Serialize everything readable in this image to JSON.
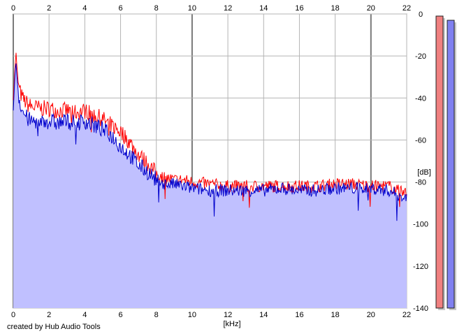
{
  "credit": "created by Hub Audio Tools",
  "chart_data": {
    "type": "area",
    "title": "",
    "xlabel": "[kHz]",
    "ylabel": "[dB]",
    "xlim": [
      0,
      22
    ],
    "ylim": [
      -140,
      0
    ],
    "x_ticks": [
      0,
      2,
      4,
      6,
      8,
      10,
      12,
      14,
      16,
      18,
      20,
      22
    ],
    "y_ticks": [
      0,
      -20,
      -40,
      -60,
      -80,
      -100,
      -120,
      -140
    ],
    "grid": true,
    "legend": "none",
    "series": [
      {
        "color": "#ff0000",
        "x": [
          0,
          0.1,
          0.15,
          0.2,
          0.3,
          0.5,
          0.8,
          1.0,
          1.5,
          2.0,
          2.5,
          3.0,
          3.5,
          4.0,
          4.5,
          5.0,
          5.5,
          6.0,
          6.5,
          7.0,
          7.5,
          8.0,
          8.5,
          9.0,
          9.5,
          10.0,
          11,
          12,
          13,
          14,
          15,
          16,
          17,
          18,
          19,
          20,
          21,
          22
        ],
        "values": [
          -40,
          -25,
          -18,
          -25,
          -35,
          -40,
          -43,
          -44,
          -45,
          -45,
          -46,
          -46,
          -47,
          -46,
          -48,
          -50,
          -53,
          -56,
          -61,
          -67,
          -71,
          -76,
          -78,
          -79,
          -79,
          -80,
          -81,
          -82,
          -82,
          -82,
          -82,
          -82,
          -82,
          -81,
          -81,
          -82,
          -82,
          -86
        ]
      },
      {
        "color": "#0000cc",
        "x": [
          0,
          0.1,
          0.15,
          0.2,
          0.3,
          0.5,
          0.8,
          1.0,
          1.5,
          2.0,
          2.5,
          3.0,
          3.5,
          4.0,
          4.5,
          5.0,
          5.5,
          6.0,
          6.5,
          7.0,
          7.5,
          8.0,
          8.5,
          9.0,
          9.5,
          10.0,
          11,
          12,
          13,
          14,
          15,
          16,
          17,
          18,
          19,
          20,
          21,
          22
        ],
        "values": [
          -45,
          -29,
          -22,
          -29,
          -39,
          -46,
          -50,
          -51,
          -51,
          -51,
          -52,
          -51,
          -52,
          -51,
          -53,
          -55,
          -58,
          -63,
          -67,
          -72,
          -75,
          -79,
          -81,
          -81,
          -82,
          -83,
          -84,
          -84,
          -84,
          -84,
          -83,
          -84,
          -84,
          -83,
          -83,
          -83,
          -84,
          -88
        ]
      }
    ],
    "levels": [
      {
        "color": "#f08080",
        "value": -1
      },
      {
        "color": "#8080f0",
        "value": -3
      }
    ]
  }
}
